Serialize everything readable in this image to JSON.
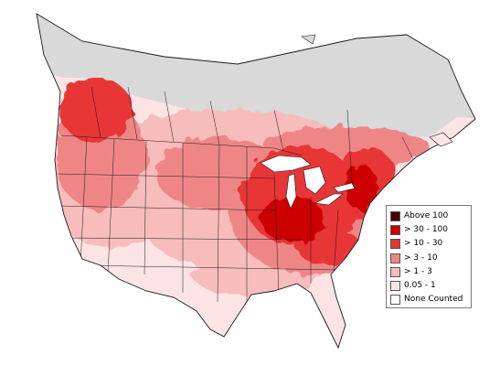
{
  "map": {
    "colors": {
      "ocean": "#ffffff",
      "none": "#d9d9d9",
      "c1": "#fde4e4",
      "c2": "#f7bcbc",
      "c3": "#ef8686",
      "c4": "#e83434",
      "c5": "#cc0000",
      "c6": "#4a0000",
      "border": "#1a1a1a"
    }
  },
  "legend": {
    "items": [
      {
        "label": "Above 100",
        "color": "#4a0000"
      },
      {
        "label": "> 30 - 100",
        "color": "#cc0000"
      },
      {
        "label": "> 10 - 30",
        "color": "#e83434"
      },
      {
        "label": "> 3 - 10",
        "color": "#ef8686"
      },
      {
        "label": "> 1 - 3",
        "color": "#f7bcbc"
      },
      {
        "label": "0.05 - 1",
        "color": "#fde4e4"
      },
      {
        "label": "None Counted",
        "color": "#ffffff"
      }
    ]
  }
}
